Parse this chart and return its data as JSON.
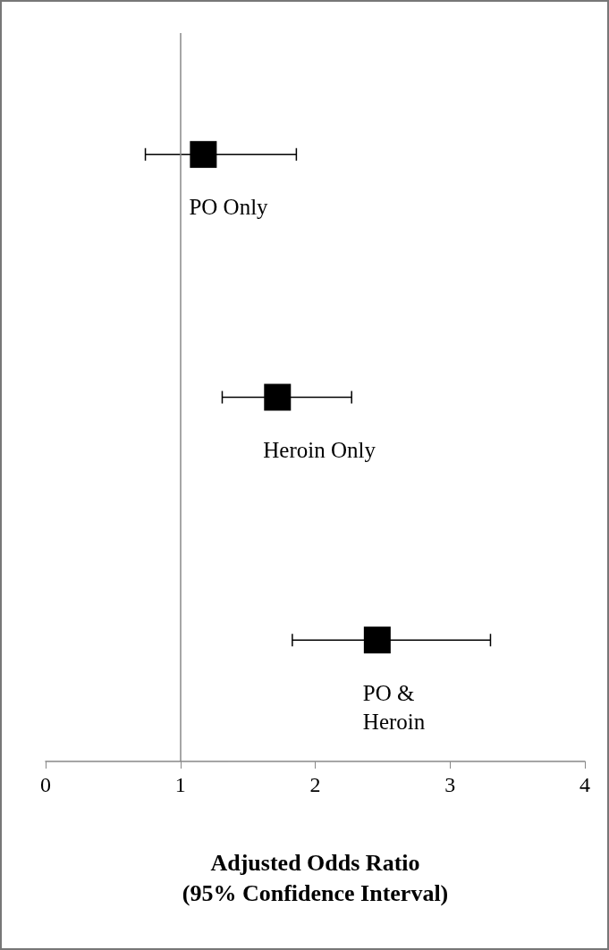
{
  "chart_data": {
    "type": "scatter",
    "orientation": "horizontal",
    "categories": [
      "PO Only",
      "Heroin Only",
      "PO & Heroin"
    ],
    "values": [
      1.17,
      1.72,
      2.46
    ],
    "errors": [
      [
        0.74,
        1.86
      ],
      [
        1.31,
        2.27
      ],
      [
        1.83,
        3.3
      ]
    ],
    "color": "#000000",
    "marker": "square",
    "xlim": [
      0,
      4
    ],
    "xticks": [
      0,
      1,
      2,
      3,
      4
    ],
    "xlabel": "Adjusted Odds Ratio\n(95% Confidence Interval)",
    "ref_lines": [
      {
        "axis": "x",
        "value": 1
      }
    ],
    "tick_labels": "x",
    "grid": false
  }
}
